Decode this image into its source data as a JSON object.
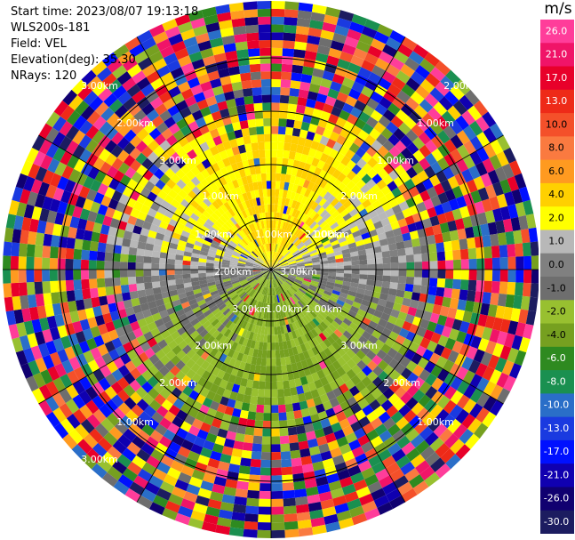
{
  "header": {
    "start_time": "Start time: 2023/08/07 19:13:18",
    "instrument": "WLS200s-181",
    "field": "Field: VEL",
    "elevation": "Elevation(deg): 35.30",
    "nrays": "NRays: 120"
  },
  "colorbar": {
    "unit": "m/s",
    "ticks": [
      "26.0",
      "21.0",
      "17.0",
      "13.0",
      "10.0",
      "8.0",
      "6.0",
      "4.0",
      "2.0",
      "1.0",
      "0.0",
      "-1.0",
      "-2.0",
      "-4.0",
      "-6.0",
      "-8.0",
      "-10.0",
      "-13.0",
      "-17.0",
      "-21.0",
      "-26.0",
      "-30.0"
    ],
    "colors": [
      "#ff3d9a",
      "#f01468",
      "#e8002a",
      "#ee2a18",
      "#f4502a",
      "#fa7a40",
      "#ff9a20",
      "#ffd000",
      "#ffff00",
      "#b8b8b8",
      "#808080",
      "#6e6e6e",
      "#98c030",
      "#76a020",
      "#2e8a20",
      "#1a9050",
      "#2a6ec8",
      "#1a3ae0",
      "#0010ff",
      "#1000b0",
      "#100070",
      "#1c1c60"
    ]
  },
  "chart_data": {
    "type": "heatmap",
    "title": "",
    "field": "VEL",
    "unit": "m/s",
    "nrays": 120,
    "range_ring_labels": [
      "1.00km",
      "1.00km",
      "2.00km",
      "3.00km"
    ],
    "ring_label_texts": [
      "3.00km",
      "2.00km",
      "3.00km",
      "1.00km",
      "2.00km",
      "1.00km",
      "1.00km",
      "2.00km",
      "1.00km",
      "3.00km",
      "1.00km",
      "2.00km",
      "2.00km",
      "3.00km",
      "1.00km",
      "2.00km",
      "3.00km",
      "1.00km",
      "1.00km",
      "2.00km",
      "3.00km",
      "1.00km",
      "1.00km",
      "2.00km"
    ]
  }
}
